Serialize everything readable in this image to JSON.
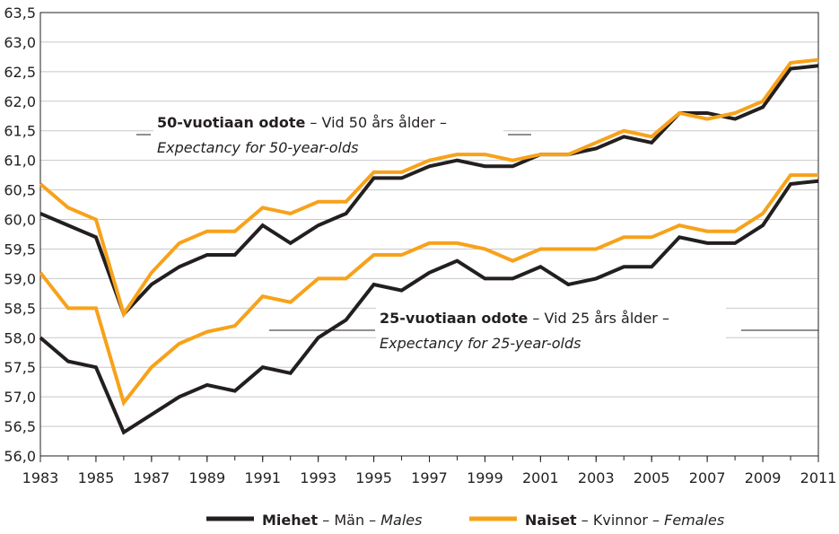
{
  "chart_data": {
    "type": "line",
    "x": [
      1983,
      1984,
      1985,
      1986,
      1987,
      1988,
      1989,
      1990,
      1991,
      1992,
      1993,
      1994,
      1995,
      1996,
      1997,
      1998,
      1999,
      2000,
      2001,
      2002,
      2003,
      2004,
      2005,
      2006,
      2007,
      2008,
      2009,
      2010,
      2011
    ],
    "series": [
      {
        "color": "#231f20",
        "values": [
          60.1,
          59.9,
          59.7,
          58.4,
          58.9,
          59.2,
          59.4,
          59.4,
          59.9,
          59.6,
          59.9,
          60.1,
          60.7,
          60.7,
          60.9,
          61.0,
          60.9,
          60.9,
          61.1,
          61.1,
          61.2,
          61.4,
          61.3,
          61.8,
          61.8,
          61.7,
          61.9,
          62.55,
          62.6
        ]
      },
      {
        "color": "#f7a21b",
        "values": [
          60.6,
          60.2,
          60.0,
          58.4,
          59.1,
          59.6,
          59.8,
          59.8,
          60.2,
          60.1,
          60.3,
          60.3,
          60.8,
          60.8,
          61.0,
          61.1,
          61.1,
          61.0,
          61.1,
          61.1,
          61.3,
          61.5,
          61.4,
          61.8,
          61.7,
          61.8,
          62.0,
          62.65,
          62.7
        ]
      },
      {
        "color": "#231f20",
        "values": [
          58.0,
          57.6,
          57.5,
          56.4,
          56.7,
          57.0,
          57.2,
          57.1,
          57.5,
          57.4,
          58.0,
          58.3,
          58.9,
          58.8,
          59.1,
          59.3,
          59.0,
          59.0,
          59.2,
          58.9,
          59.0,
          59.2,
          59.2,
          59.7,
          59.6,
          59.6,
          59.9,
          60.6,
          60.65
        ]
      },
      {
        "color": "#f7a21b",
        "values": [
          59.1,
          58.5,
          58.5,
          56.9,
          57.5,
          57.9,
          58.1,
          58.2,
          58.7,
          58.6,
          59.0,
          59.0,
          59.4,
          59.4,
          59.6,
          59.6,
          59.5,
          59.3,
          59.5,
          59.5,
          59.5,
          59.7,
          59.7,
          59.9,
          59.8,
          59.8,
          60.1,
          60.75,
          60.75
        ]
      }
    ],
    "legend": [
      {
        "color": "#231f20",
        "parts": [
          "Miehet",
          " – Män – ",
          "Males"
        ]
      },
      {
        "color": "#f7a21b",
        "parts": [
          "Naiset",
          " – Kvinnor – ",
          "Females"
        ]
      }
    ],
    "annotations": [
      {
        "parts": [
          "50-vuotiaan odote",
          " – Vid 50 års ålder –",
          "Expectancy for 50-year-olds"
        ]
      },
      {
        "parts": [
          "25-vuotiaan odote",
          " – Vid 25 års ålder –",
          "Expectancy for 25-year-olds"
        ]
      }
    ],
    "xlim": [
      1983,
      2011
    ],
    "xticks": [
      1983,
      1985,
      1987,
      1989,
      1991,
      1993,
      1995,
      1997,
      1999,
      2001,
      2003,
      2005,
      2007,
      2009,
      2011
    ],
    "ylim": [
      56.0,
      63.5
    ],
    "yticks": [
      {
        "value": 56.0,
        "label": "56,0"
      },
      {
        "value": 56.5,
        "label": "56,5"
      },
      {
        "value": 57.0,
        "label": "57,0"
      },
      {
        "value": 57.5,
        "label": "57,5"
      },
      {
        "value": 58.0,
        "label": "58,0"
      },
      {
        "value": 58.5,
        "label": "58,5"
      },
      {
        "value": 59.0,
        "label": "59,0"
      },
      {
        "value": 59.5,
        "label": "59,5"
      },
      {
        "value": 60.0,
        "label": "60,0"
      },
      {
        "value": 60.5,
        "label": "60,5"
      },
      {
        "value": 61.0,
        "label": "61,0"
      },
      {
        "value": 61.5,
        "label": "61,5"
      },
      {
        "value": 62.0,
        "label": "62,0"
      },
      {
        "value": 62.5,
        "label": "62,5"
      },
      {
        "value": 63.0,
        "label": "63,0"
      },
      {
        "value": 63.5,
        "label": "63,5"
      }
    ],
    "grid": true
  }
}
